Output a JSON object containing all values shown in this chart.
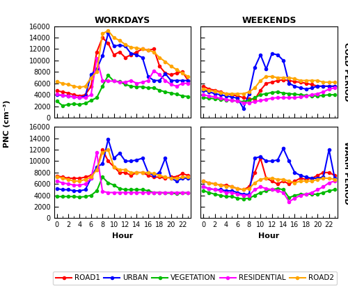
{
  "hours": [
    0,
    1,
    2,
    3,
    4,
    5,
    6,
    7,
    8,
    9,
    10,
    11,
    12,
    13,
    14,
    15,
    16,
    17,
    18,
    19,
    20,
    21,
    22,
    23
  ],
  "cold_workday": {
    "ROAD1": [
      4700,
      4500,
      4300,
      4000,
      3800,
      4000,
      5500,
      11500,
      14000,
      13000,
      11000,
      11500,
      10500,
      11000,
      11500,
      12000,
      11800,
      12000,
      9000,
      7800,
      7500,
      7800,
      8000,
      6500
    ],
    "URBAN": [
      4000,
      3900,
      3800,
      3600,
      3500,
      3800,
      7500,
      8500,
      10800,
      14800,
      12500,
      12700,
      12500,
      11200,
      11000,
      10500,
      7200,
      6500,
      6500,
      7700,
      6500,
      6500,
      6500,
      6500
    ],
    "VEGETATION": [
      2900,
      2100,
      2300,
      2400,
      2300,
      2500,
      3000,
      3500,
      5500,
      7400,
      6400,
      6300,
      5800,
      5500,
      5400,
      5400,
      5200,
      5200,
      4800,
      4500,
      4300,
      4100,
      3800,
      3700
    ],
    "RESIDENTIAL": [
      4100,
      3900,
      3800,
      3600,
      3500,
      3500,
      4000,
      10400,
      6500,
      6400,
      6400,
      6200,
      6200,
      6500,
      6000,
      6200,
      6500,
      8200,
      7500,
      6500,
      5800,
      5500,
      6000,
      6000
    ],
    "ROAD2": [
      6300,
      6000,
      5800,
      5500,
      5300,
      5500,
      7000,
      8000,
      14700,
      15200,
      14000,
      13500,
      12800,
      12300,
      12200,
      12000,
      11800,
      11500,
      10500,
      9800,
      9000,
      8400,
      7800,
      7200
    ]
  },
  "cold_weekend": {
    "ROAD1": [
      5500,
      5000,
      4800,
      4500,
      4200,
      4000,
      3800,
      3500,
      3300,
      3200,
      4800,
      6000,
      6200,
      6500,
      6600,
      6500,
      6300,
      6200,
      6000,
      5800,
      5500,
      5500,
      5500,
      5500
    ],
    "URBAN": [
      4800,
      4500,
      4200,
      4000,
      3800,
      3600,
      3400,
      1600,
      4200,
      8800,
      11000,
      8500,
      11200,
      11000,
      10000,
      6000,
      5500,
      5200,
      5000,
      5200,
      5500,
      5500,
      5500,
      5500
    ],
    "VEGETATION": [
      3500,
      3400,
      3300,
      3200,
      3100,
      3000,
      2900,
      2800,
      3000,
      3500,
      4000,
      4200,
      4400,
      4500,
      4300,
      4200,
      4100,
      4000,
      3900,
      3800,
      3800,
      3900,
      4000,
      4000
    ],
    "RESIDENTIAL": [
      4000,
      3800,
      3600,
      3400,
      3200,
      3000,
      2900,
      2600,
      2600,
      2800,
      3000,
      3200,
      3400,
      3500,
      3500,
      3500,
      3500,
      3600,
      3800,
      4000,
      4200,
      4500,
      5000,
      5200
    ],
    "ROAD2": [
      5000,
      4800,
      4600,
      4400,
      4200,
      4200,
      4200,
      4200,
      4500,
      5200,
      6500,
      7200,
      7200,
      7000,
      7000,
      7000,
      6800,
      6500,
      6500,
      6500,
      6500,
      6200,
      6200,
      6200
    ]
  },
  "warm_workday": {
    "ROAD1": [
      7400,
      7200,
      7000,
      7000,
      7000,
      7200,
      7500,
      8500,
      12000,
      10000,
      9000,
      8000,
      8000,
      7500,
      8000,
      8000,
      7500,
      7200,
      7200,
      7000,
      7200,
      7300,
      7800,
      7500
    ],
    "URBAN": [
      5200,
      5000,
      5000,
      4800,
      4800,
      5000,
      7000,
      9000,
      9500,
      13800,
      10500,
      11400,
      10000,
      10000,
      10200,
      10500,
      8000,
      7500,
      8000,
      10500,
      7000,
      6500,
      7000,
      7000
    ],
    "VEGETATION": [
      3800,
      3800,
      3800,
      3800,
      3700,
      3800,
      4000,
      4800,
      7200,
      6200,
      5800,
      5200,
      5000,
      5000,
      5000,
      5000,
      4800,
      4500,
      4500,
      4400,
      4400,
      4300,
      4400,
      4400
    ],
    "RESIDENTIAL": [
      6500,
      6200,
      6000,
      5800,
      5800,
      6000,
      7000,
      11500,
      4700,
      4500,
      4500,
      4500,
      4500,
      4500,
      4500,
      4500,
      4500,
      4500,
      4500,
      4500,
      4500,
      4500,
      4500,
      4500
    ],
    "ROAD2": [
      7300,
      7000,
      6800,
      6500,
      6500,
      6800,
      7200,
      8500,
      11500,
      12000,
      9000,
      8500,
      8500,
      8000,
      8000,
      8000,
      8000,
      7800,
      7500,
      7200,
      7000,
      7000,
      7200,
      7200
    ]
  },
  "warm_weekend": {
    "ROAD1": [
      6500,
      6200,
      6000,
      5800,
      5800,
      5500,
      5200,
      5000,
      5500,
      8000,
      10500,
      7000,
      6500,
      6000,
      6500,
      6000,
      6500,
      7000,
      6800,
      7000,
      7500,
      8000,
      8000,
      7500
    ],
    "URBAN": [
      5500,
      5200,
      5000,
      5000,
      4800,
      4800,
      4500,
      4200,
      4200,
      10500,
      10800,
      10000,
      10000,
      10200,
      12200,
      10000,
      8000,
      7500,
      7200,
      7000,
      7000,
      7200,
      12000,
      7000
    ],
    "VEGETATION": [
      4800,
      4500,
      4200,
      4000,
      3800,
      3800,
      3500,
      3400,
      3500,
      4000,
      4500,
      4800,
      5000,
      5200,
      5000,
      3600,
      4000,
      4200,
      4200,
      4200,
      4200,
      4500,
      4800,
      5000
    ],
    "RESIDENTIAL": [
      5500,
      5200,
      5000,
      4800,
      4500,
      4500,
      4200,
      4000,
      4000,
      5000,
      5500,
      5200,
      5000,
      4800,
      4500,
      2900,
      3500,
      4000,
      4200,
      4500,
      5000,
      5500,
      6200,
      6500
    ],
    "ROAD2": [
      6500,
      6200,
      6000,
      5800,
      5600,
      5500,
      5200,
      5000,
      5200,
      6200,
      6800,
      7000,
      7000,
      6800,
      6800,
      6500,
      6200,
      6500,
      6500,
      6500,
      6800,
      7000,
      7000,
      6800
    ]
  },
  "colors": {
    "ROAD1": "#FF0000",
    "URBAN": "#0000FF",
    "VEGETATION": "#00BB00",
    "RESIDENTIAL": "#FF00FF",
    "ROAD2": "#FFA500"
  },
  "ylim": [
    0,
    16000
  ],
  "yticks": [
    0,
    2000,
    4000,
    6000,
    8000,
    10000,
    12000,
    14000,
    16000
  ],
  "xticks": [
    0,
    2,
    4,
    6,
    8,
    10,
    12,
    14,
    16,
    18,
    20,
    22
  ],
  "ylabel": "PNC (cm⁻³)",
  "xlabel": "Hour",
  "title_workdays": "WORKDAYS",
  "title_weekends": "WEEKENDS",
  "label_cold": "COLD PERIOD",
  "label_warm": "WARM PERIOD",
  "series_names": [
    "ROAD1",
    "URBAN",
    "VEGETATION",
    "RESIDENTIAL",
    "ROAD2"
  ],
  "marker": "o",
  "markersize": 3,
  "linewidth": 1.5
}
